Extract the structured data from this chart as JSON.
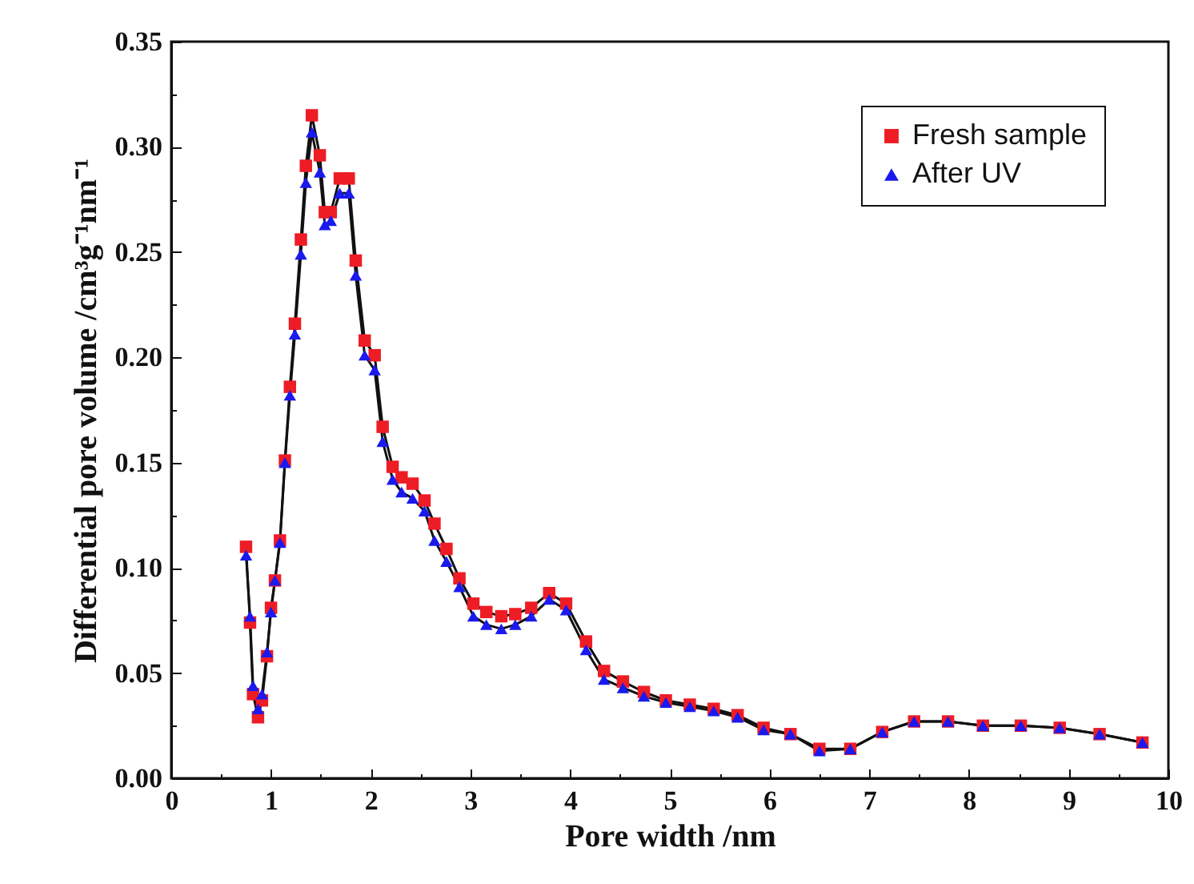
{
  "chart_data": {
    "type": "line",
    "xlabel": "Pore width /nm",
    "ylabel": "Differential pore volume /cm³g⁻¹nm⁻¹",
    "x": [
      0.75,
      0.79,
      0.82,
      0.87,
      0.91,
      0.96,
      1.0,
      1.04,
      1.09,
      1.14,
      1.19,
      1.24,
      1.3,
      1.35,
      1.41,
      1.49,
      1.54,
      1.6,
      1.69,
      1.78,
      1.85,
      1.94,
      2.04,
      2.12,
      2.22,
      2.31,
      2.42,
      2.54,
      2.64,
      2.76,
      2.89,
      3.03,
      3.16,
      3.31,
      3.45,
      3.61,
      3.79,
      3.96,
      4.16,
      4.34,
      4.53,
      4.74,
      4.96,
      5.2,
      5.44,
      5.68,
      5.94,
      6.21,
      6.5,
      6.81,
      7.13,
      7.45,
      7.79,
      8.14,
      8.52,
      8.91,
      9.31,
      9.74
    ],
    "series": [
      {
        "name": "Fresh sample",
        "color": "#ee1c25",
        "marker": "square",
        "values": [
          0.11,
          0.074,
          0.04,
          0.029,
          0.037,
          0.058,
          0.081,
          0.094,
          0.113,
          0.151,
          0.186,
          0.216,
          0.256,
          0.291,
          0.315,
          0.296,
          0.269,
          0.269,
          0.285,
          0.285,
          0.246,
          0.208,
          0.201,
          0.167,
          0.148,
          0.143,
          0.14,
          0.132,
          0.121,
          0.109,
          0.095,
          0.083,
          0.079,
          0.077,
          0.078,
          0.081,
          0.088,
          0.083,
          0.065,
          0.051,
          0.046,
          0.041,
          0.037,
          0.035,
          0.033,
          0.03,
          0.024,
          0.021,
          0.014,
          0.014,
          0.022,
          0.027,
          0.027,
          0.025,
          0.025,
          0.024,
          0.021,
          0.017
        ]
      },
      {
        "name": "After UV",
        "color": "#1a1aee",
        "marker": "triangle",
        "values": [
          0.106,
          0.077,
          0.044,
          0.033,
          0.04,
          0.06,
          0.079,
          0.094,
          0.112,
          0.15,
          0.182,
          0.211,
          0.249,
          0.283,
          0.307,
          0.288,
          0.263,
          0.265,
          0.278,
          0.278,
          0.239,
          0.201,
          0.194,
          0.16,
          0.142,
          0.136,
          0.133,
          0.127,
          0.113,
          0.103,
          0.091,
          0.077,
          0.073,
          0.071,
          0.073,
          0.077,
          0.085,
          0.08,
          0.061,
          0.047,
          0.043,
          0.039,
          0.036,
          0.034,
          0.032,
          0.029,
          0.023,
          0.021,
          0.013,
          0.014,
          0.022,
          0.027,
          0.027,
          0.025,
          0.025,
          0.024,
          0.021,
          0.017
        ]
      }
    ],
    "xlim": [
      0,
      10
    ],
    "xticks": [
      0,
      {
        "value": 0.5,
        "label": null
      },
      1,
      {
        "value": 1.5,
        "label": null
      },
      2,
      {
        "value": 2.5,
        "label": null
      },
      3,
      {
        "value": 3.5,
        "label": null
      },
      4,
      {
        "value": 4.5,
        "label": null
      },
      5,
      {
        "value": 5.5,
        "label": null
      },
      6,
      {
        "value": 6.5,
        "label": null
      },
      7,
      {
        "value": 7.5,
        "label": null
      },
      8,
      {
        "value": 8.5,
        "label": null
      },
      9,
      {
        "value": 9.5,
        "label": null
      },
      10
    ],
    "ylim": [
      0,
      0.35
    ],
    "yticks": [
      {
        "value": 0,
        "label": "0.00"
      },
      {
        "value": 0.025,
        "label": null
      },
      {
        "value": 0.05,
        "label": "0.05"
      },
      {
        "value": 0.075,
        "label": null
      },
      {
        "value": 0.1,
        "label": "0.10"
      },
      {
        "value": 0.125,
        "label": null
      },
      {
        "value": 0.15,
        "label": "0.15"
      },
      {
        "value": 0.175,
        "label": null
      },
      {
        "value": 0.2,
        "label": "0.20"
      },
      {
        "value": 0.225,
        "label": null
      },
      {
        "value": 0.25,
        "label": "0.25"
      },
      {
        "value": 0.275,
        "label": null
      },
      {
        "value": 0.3,
        "label": "0.30"
      },
      {
        "value": 0.325,
        "label": null
      },
      {
        "value": 0.35,
        "label": "0.35"
      }
    ],
    "grid": false,
    "legend": "top right",
    "line_style": "solid"
  }
}
